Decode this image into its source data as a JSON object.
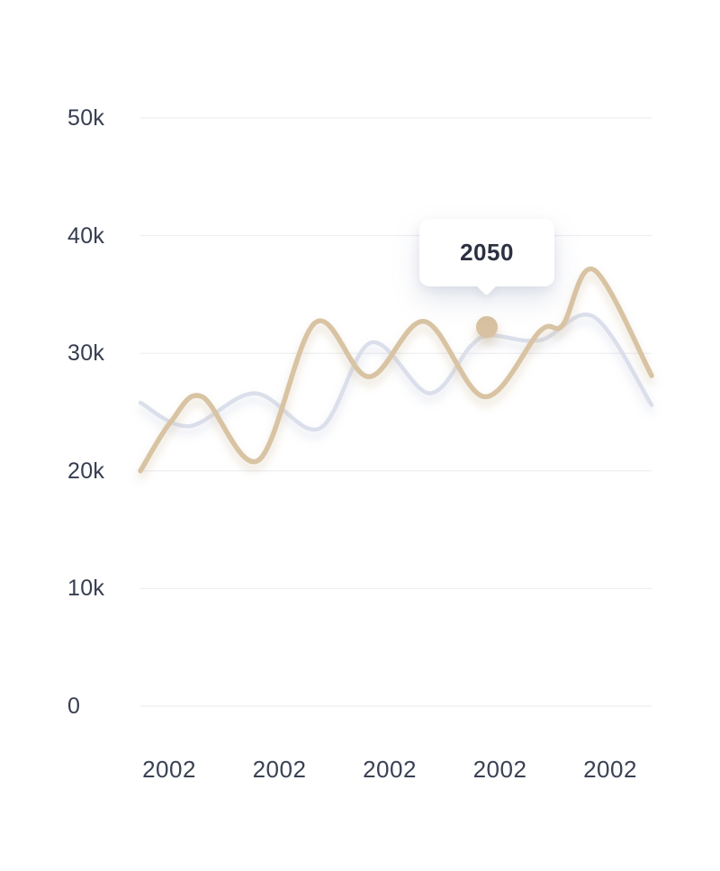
{
  "page": {
    "background": "#ffffff"
  },
  "chart_data": {
    "type": "line",
    "title": "",
    "grid": {
      "show": true,
      "color": "#e9ebee",
      "orientation": "horizontal"
    },
    "y_axis": {
      "range_k": [
        0,
        50
      ],
      "tick_step_k": 10,
      "ticks": [
        {
          "label": "50k",
          "value_k": 50
        },
        {
          "label": "40k",
          "value_k": 40
        },
        {
          "label": "30k",
          "value_k": 30
        },
        {
          "label": "20k",
          "value_k": 20
        },
        {
          "label": "10k",
          "value_k": 10
        },
        {
          "label": "0",
          "value_k": 0
        }
      ],
      "label_color": "#363d4f"
    },
    "x_axis": {
      "labels": [
        "2002",
        "2002",
        "2002",
        "2002",
        "2002"
      ],
      "label_color": "#3a4153"
    },
    "series": [
      {
        "name": "secondary-line",
        "color": "#dbdfeb",
        "stroke_width": 4.5,
        "shadow_color": "#9aa6c4",
        "shadow_opacity": 0.3,
        "points_x_fraction_value_k": [
          [
            0.0,
            25.8
          ],
          [
            0.095,
            23.8
          ],
          [
            0.224,
            26.6
          ],
          [
            0.35,
            23.6
          ],
          [
            0.451,
            30.9
          ],
          [
            0.565,
            26.6
          ],
          [
            0.646,
            30.6
          ],
          [
            0.685,
            31.5
          ],
          [
            0.782,
            31.1
          ],
          [
            0.887,
            33.1
          ],
          [
            1.0,
            25.6
          ]
        ]
      },
      {
        "name": "primary-line",
        "color": "#d8c3a3",
        "stroke_width": 5.5,
        "shadow_color": "#c3ab87",
        "shadow_opacity": 0.4,
        "points_x_fraction_value_k": [
          [
            0.0,
            20.0
          ],
          [
            0.06,
            24.2
          ],
          [
            0.121,
            26.3
          ],
          [
            0.231,
            20.9
          ],
          [
            0.342,
            32.6
          ],
          [
            0.447,
            28.0
          ],
          [
            0.556,
            32.7
          ],
          [
            0.673,
            26.3
          ],
          [
            0.782,
            31.9
          ],
          [
            0.826,
            32.4
          ],
          [
            0.887,
            37.1
          ],
          [
            1.0,
            28.1
          ]
        ]
      }
    ],
    "highlight": {
      "tooltip_label": "2050",
      "x_fraction": 0.678,
      "value_k": 32.2,
      "dot_color": "#d7c1a0"
    },
    "legend": null
  }
}
